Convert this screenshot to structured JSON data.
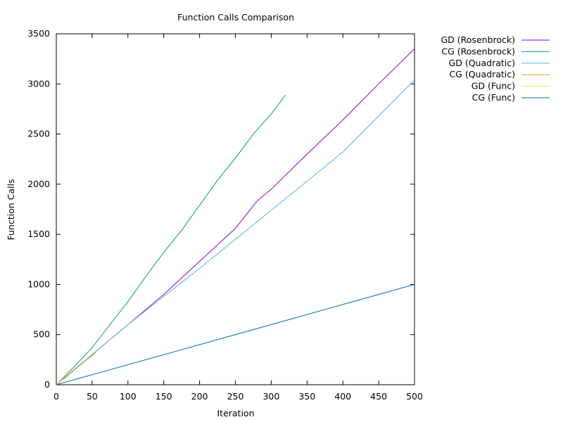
{
  "chart_data": {
    "type": "line",
    "title": "Function Calls Comparison",
    "xlabel": "Iteration",
    "ylabel": "Function Calls",
    "xlim": [
      0,
      500
    ],
    "ylim": [
      0,
      3500
    ],
    "xticks": [
      0,
      50,
      100,
      150,
      200,
      250,
      300,
      350,
      400,
      450,
      500
    ],
    "yticks": [
      0,
      500,
      1000,
      1500,
      2000,
      2500,
      3000,
      3500
    ],
    "grid": false,
    "legend_position": "top-right outside",
    "series": [
      {
        "name": "GD (Rosenbrock)",
        "color": "#9400d3",
        "x": [
          0,
          50,
          100,
          150,
          200,
          250,
          280,
          300,
          350,
          400,
          450,
          500
        ],
        "y": [
          0,
          300,
          600,
          900,
          1230,
          1560,
          1830,
          1950,
          2300,
          2640,
          3000,
          3350
        ]
      },
      {
        "name": "CG (Rosenbrock)",
        "color": "#009e73",
        "x": [
          0,
          25,
          50,
          75,
          100,
          125,
          150,
          175,
          200,
          225,
          250,
          275,
          300,
          320
        ],
        "y": [
          0,
          180,
          370,
          600,
          830,
          1080,
          1320,
          1540,
          1790,
          2040,
          2260,
          2500,
          2700,
          2890
        ]
      },
      {
        "name": "GD (Quadratic)",
        "color": "#56b4e9",
        "x": [
          0,
          50,
          100,
          150,
          200,
          250,
          300,
          350,
          400,
          450,
          500
        ],
        "y": [
          0,
          300,
          600,
          880,
          1160,
          1450,
          1740,
          2030,
          2320,
          2680,
          3040
        ]
      },
      {
        "name": "CG (Quadratic)",
        "color": "#e69f00",
        "x": [
          0,
          10,
          20,
          30,
          40,
          50,
          55
        ],
        "y": [
          0,
          55,
          115,
          175,
          235,
          290,
          320
        ]
      },
      {
        "name": "GD (Func)",
        "color": "#f0e442",
        "x": [
          0,
          5,
          10
        ],
        "y": [
          0,
          30,
          60
        ]
      },
      {
        "name": "CG (Func)",
        "color": "#0072b2",
        "x": [
          0,
          100,
          200,
          300,
          400,
          500
        ],
        "y": [
          0,
          200,
          400,
          600,
          800,
          1000
        ]
      }
    ]
  }
}
